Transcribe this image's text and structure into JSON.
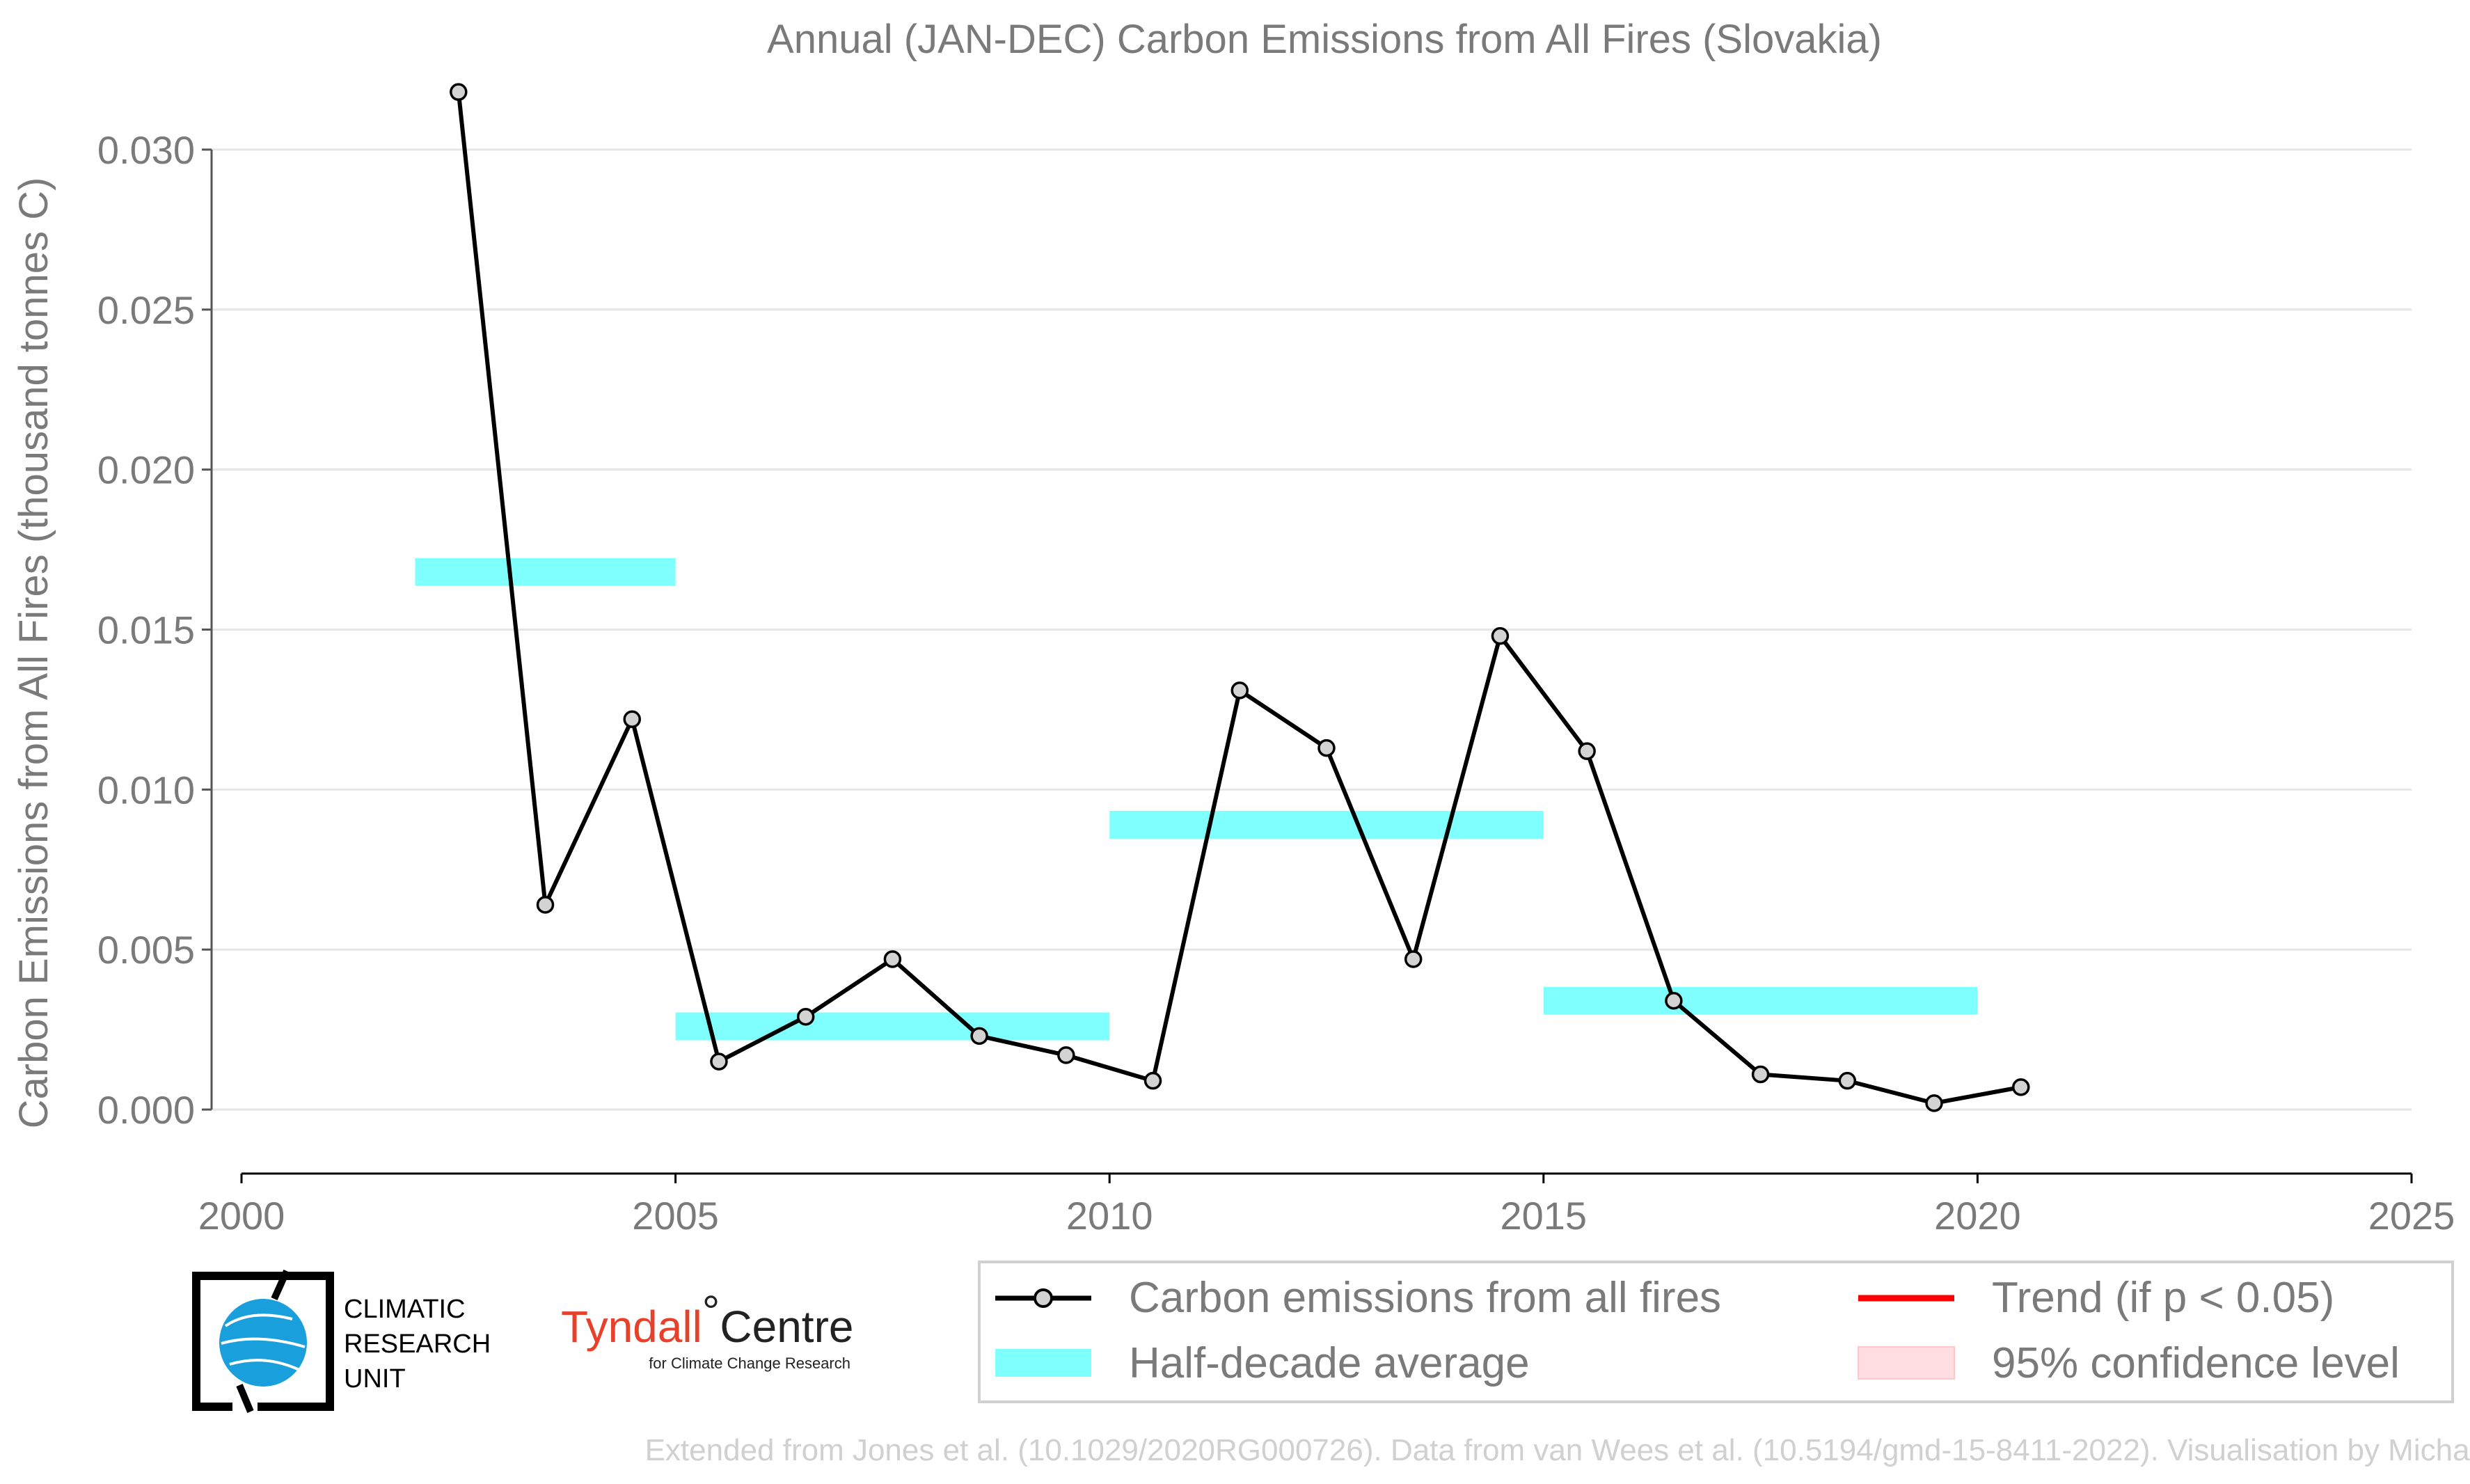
{
  "chart_data": {
    "type": "line",
    "title": "Annual (JAN-DEC) Carbon Emissions from All Fires (Slovakia)",
    "xlabel": "",
    "ylabel": "Carbon Emissions from All Fires (thousand tonnes C)",
    "xlim": [
      2000,
      2025
    ],
    "ylim": [
      -0.002,
      0.0325
    ],
    "x_ticks": [
      2000,
      2005,
      2010,
      2015,
      2020,
      2025
    ],
    "y_ticks": [
      0.0,
      0.005,
      0.01,
      0.015,
      0.02,
      0.025,
      0.03
    ],
    "y_tick_labels": [
      "0.000",
      "0.005",
      "0.010",
      "0.015",
      "0.020",
      "0.025",
      "0.030"
    ],
    "grid": "horizontal",
    "series": [
      {
        "name": "Carbon emissions from all fires",
        "color": "#000000",
        "x": [
          2002.5,
          2003.5,
          2004.5,
          2005.5,
          2006.5,
          2007.5,
          2008.5,
          2009.5,
          2010.5,
          2011.5,
          2012.5,
          2013.5,
          2014.5,
          2015.5,
          2016.5,
          2017.5,
          2018.5,
          2019.5,
          2020.5
        ],
        "y": [
          0.0318,
          0.0064,
          0.0122,
          0.0015,
          0.0029,
          0.0047,
          0.0023,
          0.0017,
          0.0009,
          0.0131,
          0.0113,
          0.0047,
          0.0148,
          0.0112,
          0.0034,
          0.0011,
          0.0009,
          0.0002,
          0.0007
        ]
      }
    ],
    "half_decade_averages": {
      "name": "Half-decade average",
      "color": "#80ffff",
      "segments": [
        {
          "x_start": 2002,
          "x_end": 2005,
          "value": 0.0168
        },
        {
          "x_start": 2005,
          "x_end": 2010,
          "value": 0.0026
        },
        {
          "x_start": 2010,
          "x_end": 2015,
          "value": 0.0089
        },
        {
          "x_start": 2015,
          "x_end": 2020,
          "value": 0.0034
        }
      ]
    },
    "legend": {
      "placement": "bottom",
      "entries": [
        {
          "label": "Carbon emissions from all fires",
          "kind": "line-marker",
          "color": "#000000"
        },
        {
          "label": "Trend (if p < 0.05)",
          "kind": "line",
          "color": "#ff0000"
        },
        {
          "label": "Half-decade average",
          "kind": "band",
          "color": "#80ffff"
        },
        {
          "label": "95% confidence level",
          "kind": "patch",
          "color": "#ffdde0"
        }
      ]
    }
  },
  "logos": {
    "cru_lines": [
      "CLIMATIC",
      "RESEARCH",
      "UNIT"
    ],
    "tyndall_main": "Tyndall",
    "tyndall_degree": "°",
    "tyndall_centre": "Centre",
    "tyndall_sub": "for Climate Change Research"
  },
  "credit": "Extended from Jones et al. (10.1029/2020RG000726). Data from van Wees et al. (10.5194/gmd-15-8411-2022). Visualisation by Michael Taylor."
}
